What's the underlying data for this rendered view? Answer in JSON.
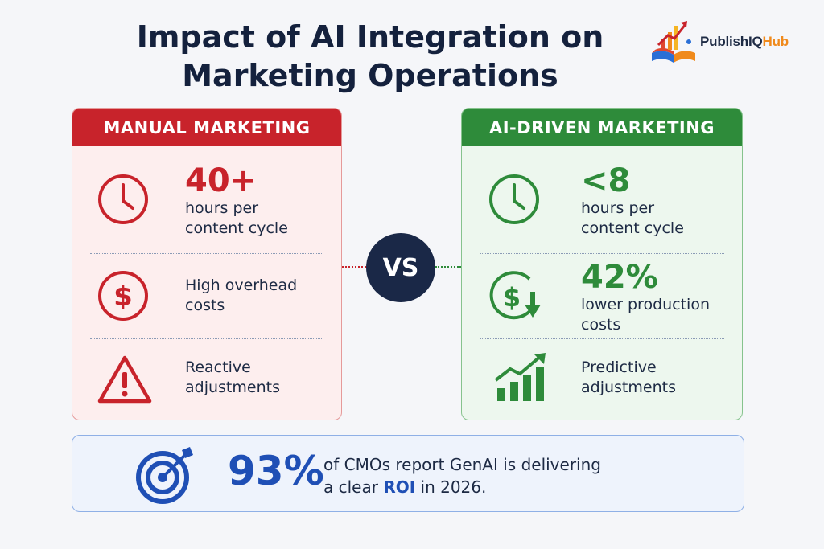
{
  "title_line1": "Impact of AI Integration on",
  "title_line2": "Marketing Operations",
  "logo": {
    "text_main": "PublishIQ",
    "text_accent": "Hub"
  },
  "manual": {
    "heading": "MANUAL MARKETING",
    "rows": [
      {
        "icon": "clock-icon",
        "value": "40+",
        "label1": "hours per",
        "label2": "content cycle"
      },
      {
        "icon": "dollar-icon",
        "label1": "High overhead",
        "label2": "costs"
      },
      {
        "icon": "warning-icon",
        "label1": "Reactive",
        "label2": "adjustments"
      }
    ]
  },
  "vs": "VS",
  "ai": {
    "heading": "AI-DRIVEN MARKETING",
    "rows": [
      {
        "icon": "clock-icon",
        "value": "<8",
        "label1": "hours per",
        "label2": "content cycle"
      },
      {
        "icon": "dollar-down-icon",
        "value": "42%",
        "label1": "lower production",
        "label2": "costs"
      },
      {
        "icon": "growth-chart-icon",
        "label1": "Predictive",
        "label2": "adjustments"
      }
    ]
  },
  "stat": {
    "icon": "target-icon",
    "value": "93%",
    "line1": "of CMOs report GenAI is delivering",
    "line2_pre": "a clear ",
    "line2_highlight": "ROI",
    "line2_post": " in 2026."
  },
  "colors": {
    "red": "#c8232b",
    "green": "#2e8b3a",
    "navy": "#1a2847",
    "blue": "#1f4fb5",
    "orange": "#f08a1c"
  }
}
